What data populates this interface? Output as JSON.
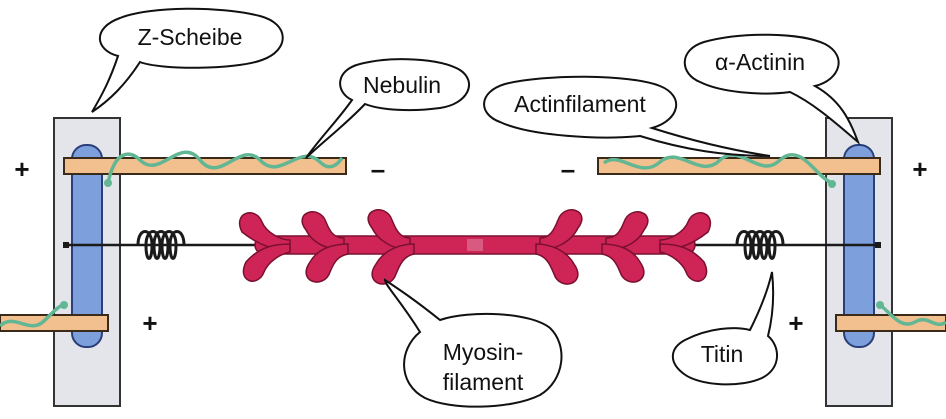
{
  "labels": {
    "z_disc": "Z-Scheibe",
    "nebulin": "Nebulin",
    "alpha_actinin": "α-Actinin",
    "actin_filament": "Actinfilament",
    "myosin_line1": "Myosin-",
    "myosin_line2": "filament",
    "titin": "Titin"
  },
  "signs": {
    "plus": "+",
    "minus": "–"
  },
  "colors": {
    "z_band": "#e3e5ea",
    "alpha_actinin": "#7d9fdc",
    "actin": "#f2c08e",
    "nebulin": "#62b694",
    "myosin": "#cf2456",
    "titin": "#1a1a1a"
  }
}
